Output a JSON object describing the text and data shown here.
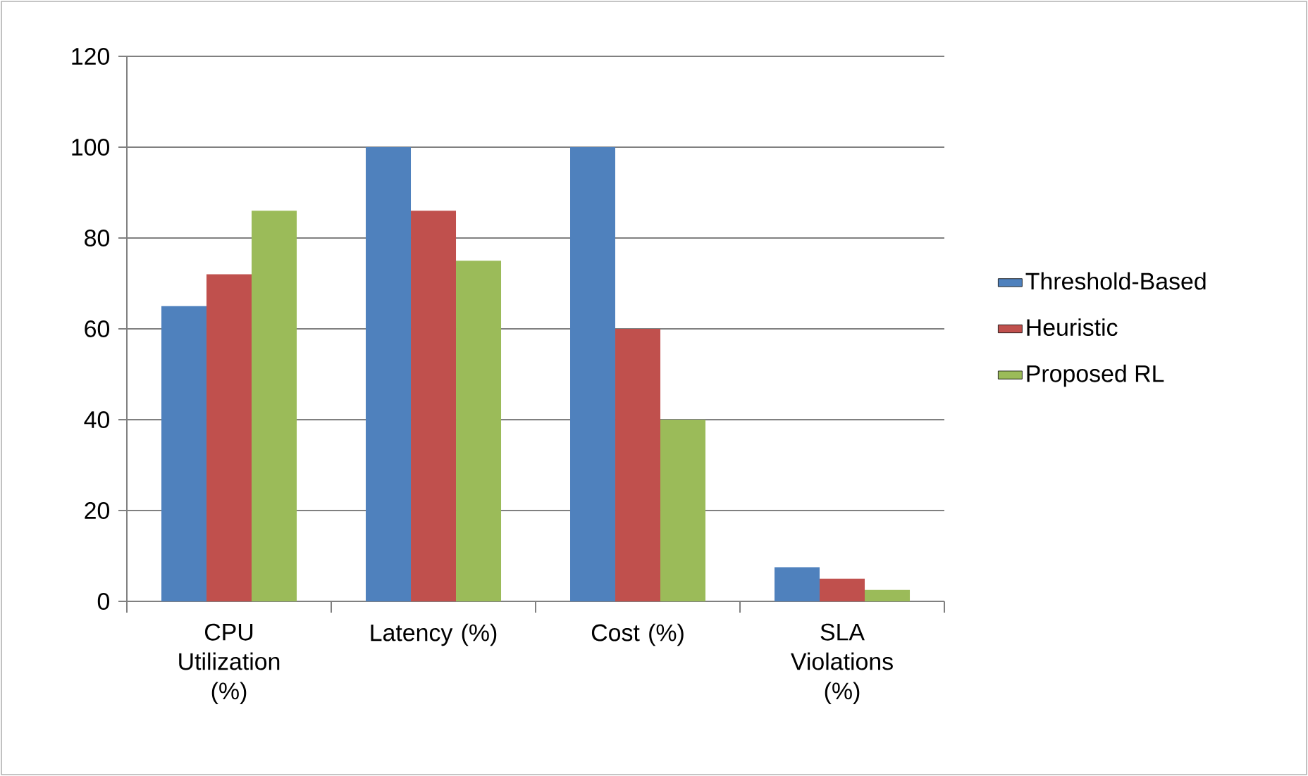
{
  "chart_data": {
    "type": "bar",
    "categories": [
      "CPU Utilization (%)",
      "Latency (%)",
      "Cost (%)",
      "SLA Violations (%)"
    ],
    "series": [
      {
        "name": "Threshold-Based",
        "color": "#4f81bd",
        "values": [
          65,
          100,
          100,
          7.5
        ]
      },
      {
        "name": "Heuristic",
        "color": "#c0504d",
        "values": [
          72,
          86,
          60,
          5
        ]
      },
      {
        "name": "Proposed RL",
        "color": "#9bbb59",
        "values": [
          86,
          75,
          40,
          2.5
        ]
      }
    ],
    "ylim": [
      0,
      120
    ],
    "yticks": [
      0,
      20,
      40,
      60,
      80,
      100,
      120
    ],
    "grid": "y",
    "legend": "right"
  }
}
